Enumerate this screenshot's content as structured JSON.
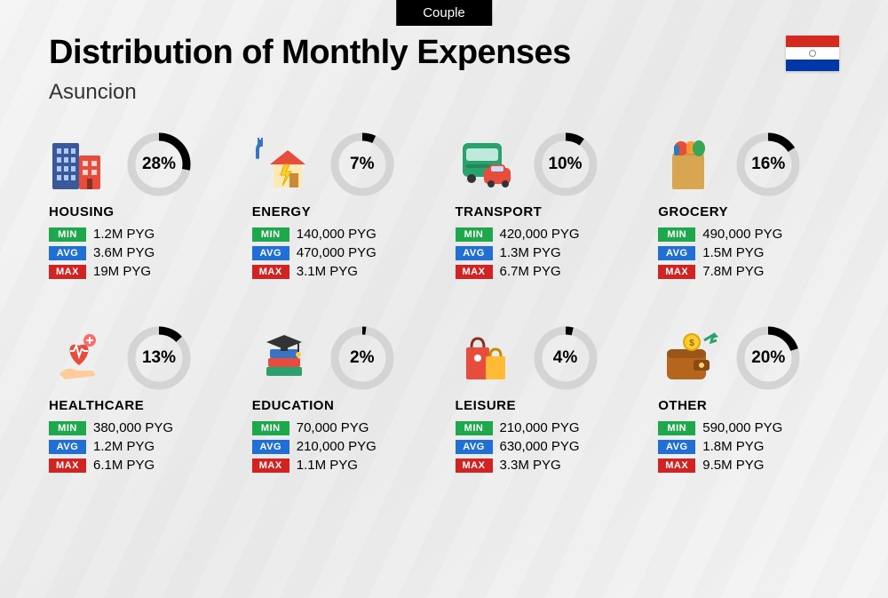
{
  "tab_label": "Couple",
  "title": "Distribution of Monthly Expenses",
  "subtitle": "Asuncion",
  "flag": {
    "top_color": "#d52b1e",
    "middle_color": "#ffffff",
    "bottom_color": "#0038a8"
  },
  "ring_style": {
    "bg_color": "#d4d4d4",
    "fg_color": "#000000",
    "stroke_width": 9,
    "radius": 31,
    "size": 72
  },
  "badge_colors": {
    "min": "#1fa84b",
    "avg": "#1f6fd6",
    "max": "#d22323"
  },
  "badge_labels": {
    "min": "MIN",
    "avg": "AVG",
    "max": "MAX"
  },
  "categories": [
    {
      "key": "housing",
      "label": "HOUSING",
      "pct": 28,
      "pct_text": "28%",
      "min": "1.2M PYG",
      "avg": "3.6M PYG",
      "max": "19M PYG",
      "icon": "buildings"
    },
    {
      "key": "energy",
      "label": "ENERGY",
      "pct": 7,
      "pct_text": "7%",
      "min": "140,000 PYG",
      "avg": "470,000 PYG",
      "max": "3.1M PYG",
      "icon": "house-energy"
    },
    {
      "key": "transport",
      "label": "TRANSPORT",
      "pct": 10,
      "pct_text": "10%",
      "min": "420,000 PYG",
      "avg": "1.3M PYG",
      "max": "6.7M PYG",
      "icon": "bus-car"
    },
    {
      "key": "grocery",
      "label": "GROCERY",
      "pct": 16,
      "pct_text": "16%",
      "min": "490,000 PYG",
      "avg": "1.5M PYG",
      "max": "7.8M PYG",
      "icon": "grocery-bag"
    },
    {
      "key": "healthcare",
      "label": "HEALTHCARE",
      "pct": 13,
      "pct_text": "13%",
      "min": "380,000 PYG",
      "avg": "1.2M PYG",
      "max": "6.1M PYG",
      "icon": "heart-hand"
    },
    {
      "key": "education",
      "label": "EDUCATION",
      "pct": 2,
      "pct_text": "2%",
      "min": "70,000 PYG",
      "avg": "210,000 PYG",
      "max": "1.1M PYG",
      "icon": "books-cap"
    },
    {
      "key": "leisure",
      "label": "LEISURE",
      "pct": 4,
      "pct_text": "4%",
      "min": "210,000 PYG",
      "avg": "630,000 PYG",
      "max": "3.3M PYG",
      "icon": "shopping-bags"
    },
    {
      "key": "other",
      "label": "OTHER",
      "pct": 20,
      "pct_text": "20%",
      "min": "590,000 PYG",
      "avg": "1.8M PYG",
      "max": "9.5M PYG",
      "icon": "wallet"
    }
  ]
}
